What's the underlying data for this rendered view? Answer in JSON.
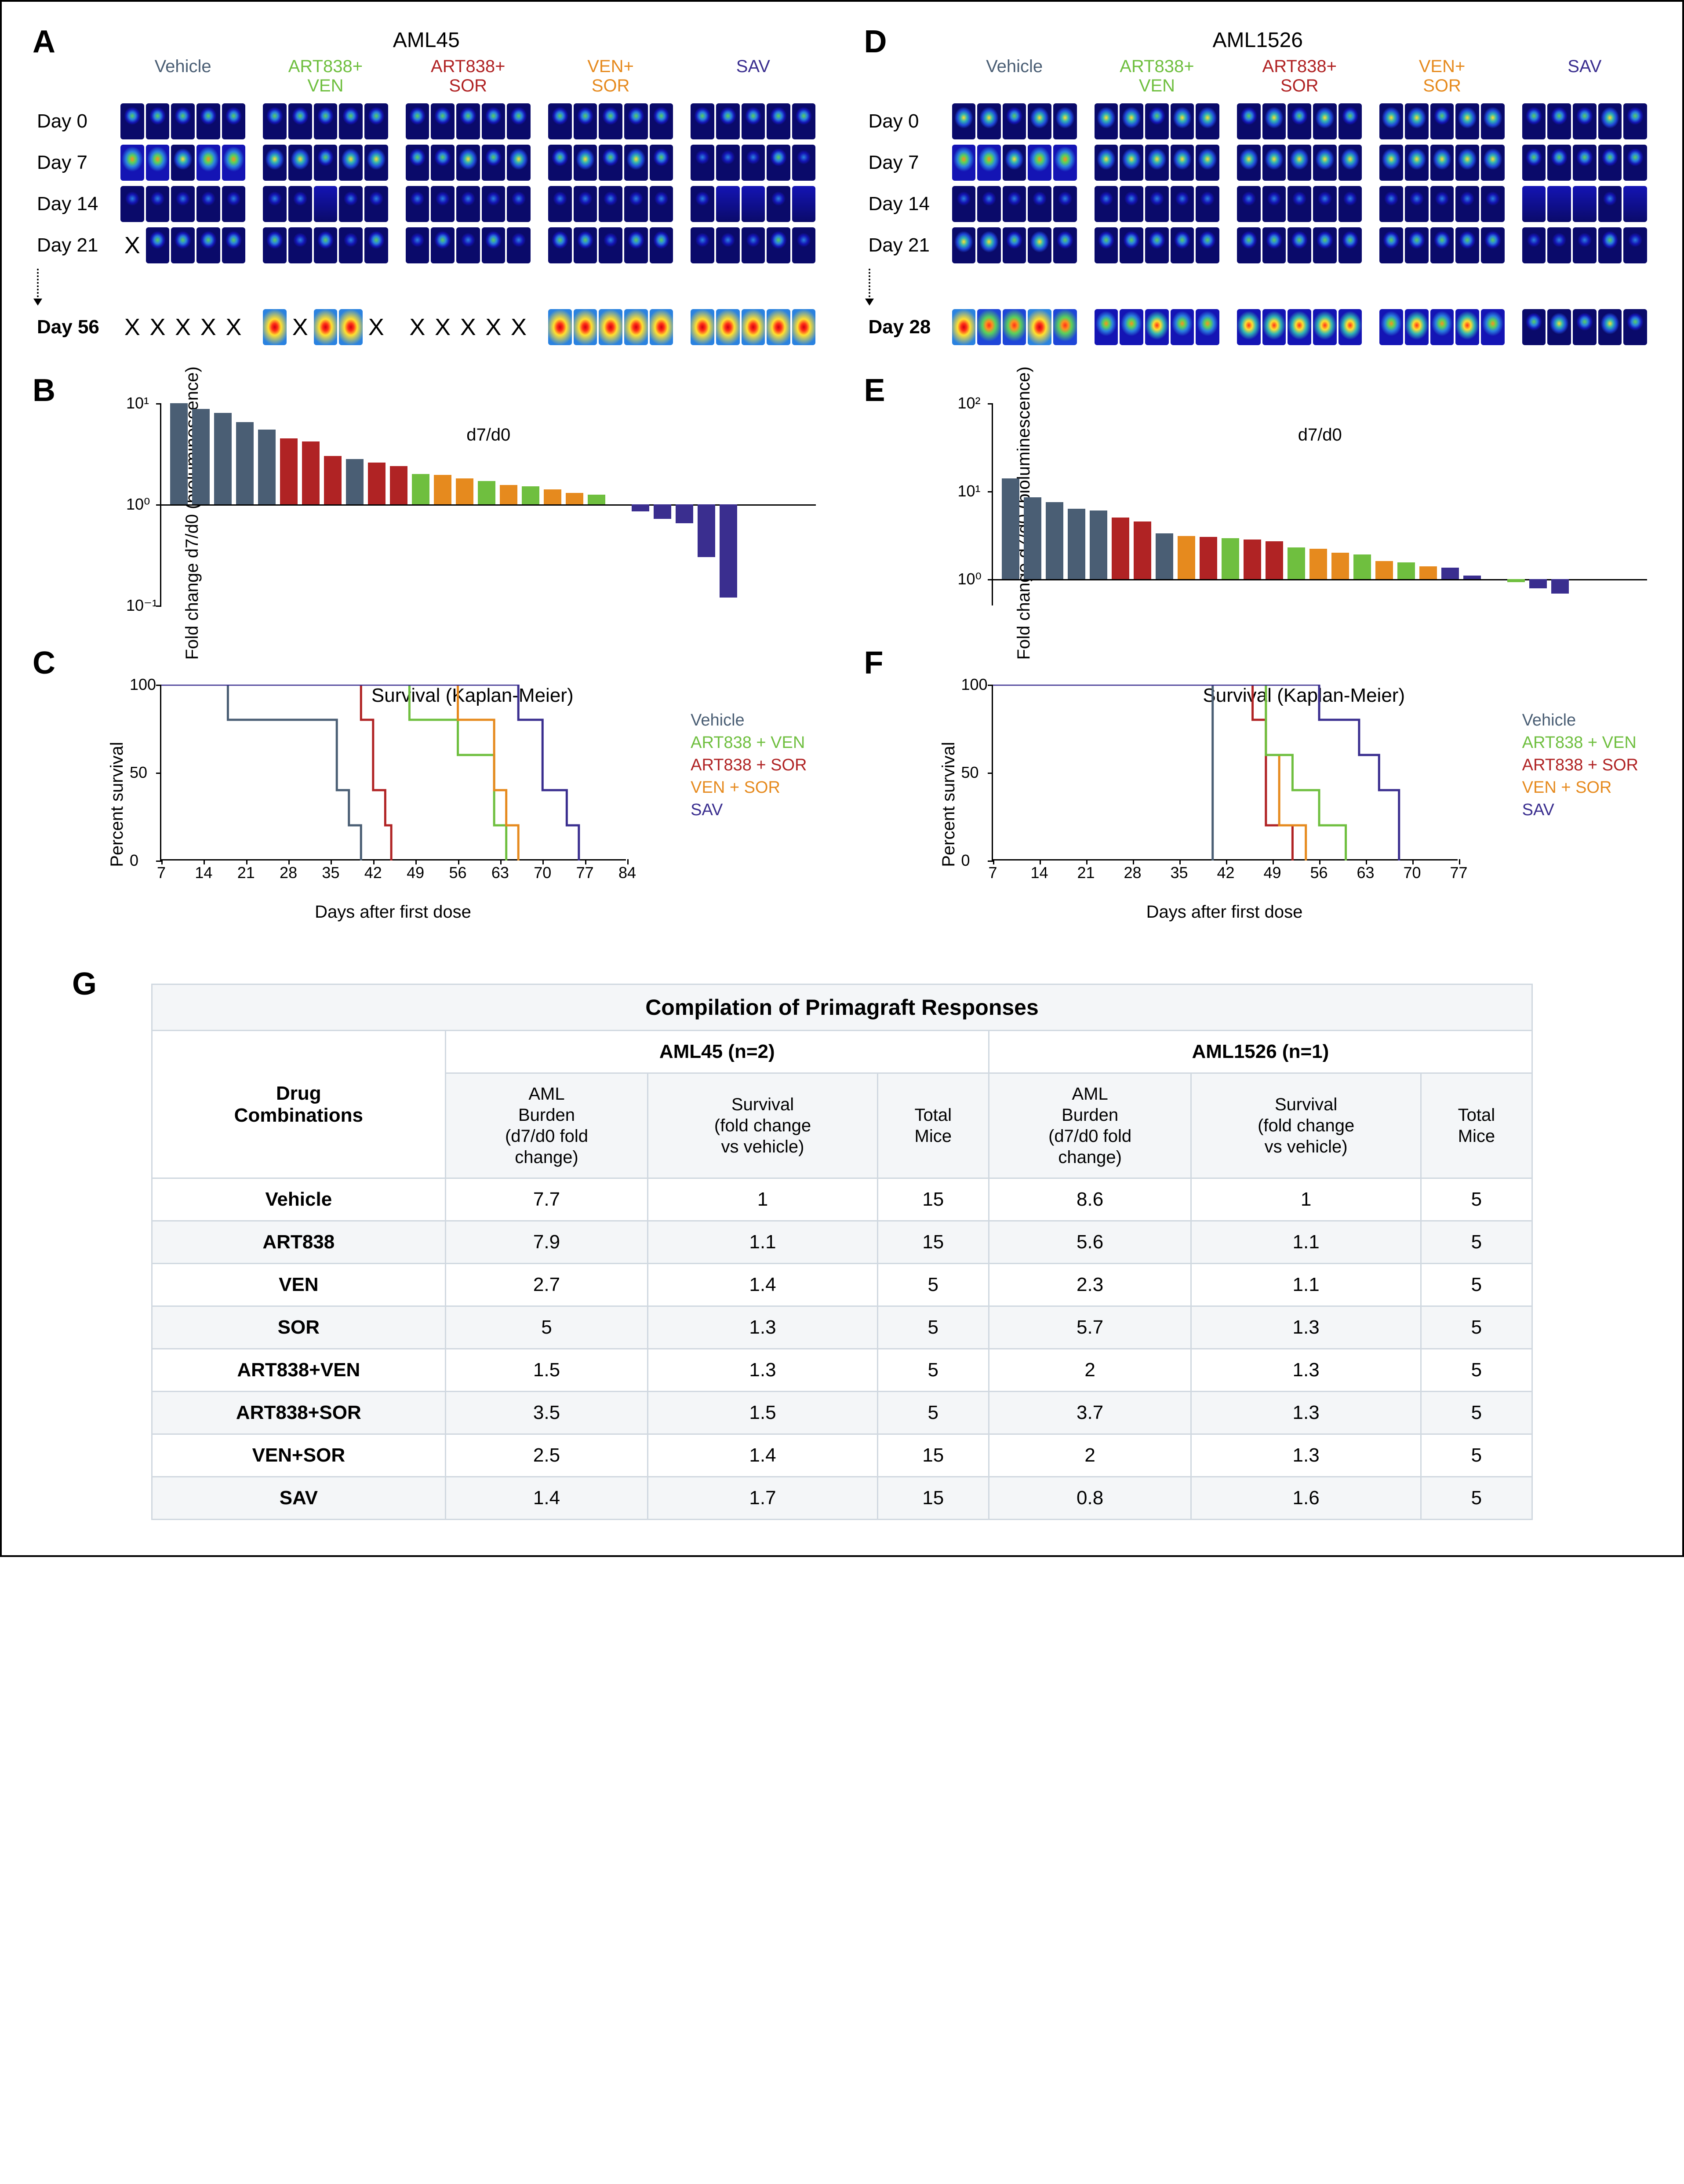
{
  "colors": {
    "vehicle": "#4a5e74",
    "art_ven": "#6fbf3f",
    "art_sor": "#b02324",
    "ven_sor": "#e68a1e",
    "sav": "#3a2e8f",
    "mouse_bg_colors": [
      "#0a0a6a",
      "#1414b4",
      "#1e46d8",
      "#2a82e0",
      "#30b4b4",
      "#5ad25a",
      "#ffe030",
      "#ff9020",
      "#ff3018",
      "#d00010"
    ]
  },
  "panelA": {
    "letter": "A",
    "model_title": "AML45",
    "groups": [
      {
        "label": "Vehicle",
        "color": "#4a5e74"
      },
      {
        "label": "ART838+\nVEN",
        "color": "#6fbf3f"
      },
      {
        "label": "ART838+\nSOR",
        "color": "#b02324"
      },
      {
        "label": "VEN+\nSOR",
        "color": "#e68a1e"
      },
      {
        "label": "SAV",
        "color": "#3a2e8f"
      }
    ],
    "day_labels": [
      "Day 0",
      "Day 7",
      "Day 14",
      "Day 21"
    ],
    "final_day_label": "Day 56",
    "n_per_group": 5,
    "rows_intensity": [
      [
        3,
        3,
        3,
        3,
        3,
        3,
        3,
        3,
        3,
        3,
        3,
        3,
        3,
        3,
        3,
        3,
        3,
        3,
        3,
        3,
        3,
        3,
        3,
        3,
        3
      ],
      [
        5,
        5,
        4,
        5,
        5,
        4,
        4,
        3,
        4,
        4,
        3,
        3,
        4,
        3,
        4,
        3,
        4,
        3,
        4,
        3,
        2,
        2,
        2,
        3,
        2
      ],
      [
        2,
        2,
        2,
        2,
        2,
        2,
        2,
        1,
        2,
        2,
        2,
        2,
        2,
        2,
        2,
        2,
        2,
        2,
        2,
        2,
        2,
        1,
        1,
        2,
        1
      ],
      [
        -1,
        3,
        3,
        3,
        3,
        3,
        2,
        3,
        2,
        3,
        2,
        3,
        2,
        3,
        2,
        3,
        3,
        2,
        3,
        3,
        2,
        2,
        2,
        3,
        2
      ]
    ],
    "final_row": [
      -1,
      -1,
      -1,
      -1,
      -1,
      8,
      -1,
      8,
      8,
      -1,
      -1,
      -1,
      -1,
      -1,
      -1,
      8,
      8,
      8,
      8,
      8,
      8,
      8,
      8,
      8,
      8
    ]
  },
  "panelD": {
    "letter": "D",
    "model_title": "AML1526",
    "groups": [
      {
        "label": "Vehicle",
        "color": "#4a5e74"
      },
      {
        "label": "ART838+\nVEN",
        "color": "#6fbf3f"
      },
      {
        "label": "ART838+\nSOR",
        "color": "#b02324"
      },
      {
        "label": "VEN+\nSOR",
        "color": "#e68a1e"
      },
      {
        "label": "SAV",
        "color": "#3a2e8f"
      }
    ],
    "day_labels": [
      "Day 0",
      "Day 7",
      "Day 14",
      "Day 21"
    ],
    "final_day_label": "Day 28",
    "n_per_group": 5,
    "rows_intensity": [
      [
        4,
        4,
        3,
        4,
        4,
        4,
        4,
        3,
        4,
        4,
        3,
        4,
        3,
        4,
        3,
        4,
        4,
        3,
        4,
        4,
        3,
        3,
        3,
        4,
        3
      ],
      [
        5,
        5,
        4,
        5,
        5,
        4,
        4,
        4,
        4,
        4,
        4,
        4,
        4,
        4,
        4,
        4,
        4,
        4,
        4,
        4,
        3,
        3,
        3,
        3,
        3
      ],
      [
        2,
        2,
        2,
        2,
        2,
        2,
        2,
        2,
        2,
        2,
        2,
        2,
        2,
        2,
        2,
        2,
        2,
        2,
        2,
        2,
        1,
        1,
        1,
        2,
        1
      ],
      [
        4,
        4,
        3,
        4,
        3,
        3,
        3,
        3,
        3,
        3,
        3,
        3,
        3,
        3,
        3,
        3,
        3,
        3,
        3,
        3,
        2,
        2,
        2,
        3,
        2
      ]
    ],
    "final_row": [
      8,
      7,
      7,
      8,
      7,
      5,
      5,
      6,
      5,
      5,
      6,
      6,
      6,
      6,
      6,
      5,
      6,
      5,
      6,
      5,
      3,
      4,
      3,
      4,
      3
    ]
  },
  "panelB": {
    "letter": "B",
    "ylabel": "Fold change d7/d0\n(bioluminescence)",
    "inset": "d7/d0",
    "ylim": [
      0.1,
      10
    ],
    "yticks": [
      0.1,
      1,
      10
    ],
    "ytick_labels": [
      "10⁻¹",
      "10⁰",
      "10¹"
    ],
    "bars": [
      {
        "v": 10.0,
        "c": "#4a5e74"
      },
      {
        "v": 8.8,
        "c": "#4a5e74"
      },
      {
        "v": 8.0,
        "c": "#4a5e74"
      },
      {
        "v": 6.5,
        "c": "#4a5e74"
      },
      {
        "v": 5.5,
        "c": "#4a5e74"
      },
      {
        "v": 4.5,
        "c": "#b02324"
      },
      {
        "v": 4.2,
        "c": "#b02324"
      },
      {
        "v": 3.0,
        "c": "#b02324"
      },
      {
        "v": 2.8,
        "c": "#4a5e74"
      },
      {
        "v": 2.6,
        "c": "#b02324"
      },
      {
        "v": 2.4,
        "c": "#b02324"
      },
      {
        "v": 2.0,
        "c": "#6fbf3f"
      },
      {
        "v": 1.95,
        "c": "#e68a1e"
      },
      {
        "v": 1.8,
        "c": "#e68a1e"
      },
      {
        "v": 1.7,
        "c": "#6fbf3f"
      },
      {
        "v": 1.55,
        "c": "#e68a1e"
      },
      {
        "v": 1.5,
        "c": "#6fbf3f"
      },
      {
        "v": 1.4,
        "c": "#e68a1e"
      },
      {
        "v": 1.3,
        "c": "#e68a1e"
      },
      {
        "v": 1.25,
        "c": "#6fbf3f"
      },
      {
        "v": 1.0,
        "c": "#6fbf3f"
      },
      {
        "v": 0.85,
        "c": "#3a2e8f"
      },
      {
        "v": 0.72,
        "c": "#3a2e8f"
      },
      {
        "v": 0.65,
        "c": "#3a2e8f"
      },
      {
        "v": 0.3,
        "c": "#3a2e8f"
      },
      {
        "v": 0.12,
        "c": "#3a2e8f"
      }
    ]
  },
  "panelE": {
    "letter": "E",
    "ylabel": "Fold change d7/d0\n(bioluminescence)",
    "inset": "d7/d0",
    "ylim": [
      0.5,
      100
    ],
    "yticks": [
      1,
      10,
      100
    ],
    "ytick_labels": [
      "10⁰",
      "10¹",
      "10²"
    ],
    "bars": [
      {
        "v": 14.0,
        "c": "#4a5e74"
      },
      {
        "v": 8.5,
        "c": "#4a5e74"
      },
      {
        "v": 7.5,
        "c": "#4a5e74"
      },
      {
        "v": 6.3,
        "c": "#4a5e74"
      },
      {
        "v": 6.0,
        "c": "#4a5e74"
      },
      {
        "v": 5.0,
        "c": "#b02324"
      },
      {
        "v": 4.5,
        "c": "#b02324"
      },
      {
        "v": 3.3,
        "c": "#4a5e74"
      },
      {
        "v": 3.1,
        "c": "#e68a1e"
      },
      {
        "v": 3.0,
        "c": "#b02324"
      },
      {
        "v": 2.9,
        "c": "#6fbf3f"
      },
      {
        "v": 2.8,
        "c": "#b02324"
      },
      {
        "v": 2.7,
        "c": "#b02324"
      },
      {
        "v": 2.3,
        "c": "#6fbf3f"
      },
      {
        "v": 2.2,
        "c": "#e68a1e"
      },
      {
        "v": 2.0,
        "c": "#e68a1e"
      },
      {
        "v": 1.9,
        "c": "#6fbf3f"
      },
      {
        "v": 1.6,
        "c": "#e68a1e"
      },
      {
        "v": 1.55,
        "c": "#6fbf3f"
      },
      {
        "v": 1.4,
        "c": "#e68a1e"
      },
      {
        "v": 1.35,
        "c": "#3a2e8f"
      },
      {
        "v": 1.1,
        "c": "#3a2e8f"
      },
      {
        "v": 1.0,
        "c": "#3a2e8f"
      },
      {
        "v": 0.92,
        "c": "#6fbf3f"
      },
      {
        "v": 0.78,
        "c": "#3a2e8f"
      },
      {
        "v": 0.68,
        "c": "#3a2e8f"
      }
    ]
  },
  "panelC": {
    "letter": "C",
    "title": "Survival (Kaplan-Meier)",
    "ylabel": "Percent survival",
    "xlabel": "Days after first dose",
    "xlim": [
      7,
      84
    ],
    "xticks": [
      7,
      14,
      21,
      28,
      35,
      42,
      49,
      56,
      63,
      70,
      77,
      84
    ],
    "ylim": [
      0,
      100
    ],
    "yticks": [
      0,
      50,
      100
    ],
    "legend": [
      {
        "label": "Vehicle",
        "c": "#4a5e74"
      },
      {
        "label": "ART838 + VEN",
        "c": "#6fbf3f"
      },
      {
        "label": "ART838 + SOR",
        "c": "#b02324"
      },
      {
        "label": "VEN + SOR",
        "c": "#e68a1e"
      },
      {
        "label": "SAV",
        "c": "#3a2e8f"
      }
    ],
    "curves": [
      {
        "c": "#4a5e74",
        "steps": [
          [
            7,
            100
          ],
          [
            18,
            100
          ],
          [
            18,
            80
          ],
          [
            36,
            80
          ],
          [
            36,
            40
          ],
          [
            38,
            40
          ],
          [
            38,
            20
          ],
          [
            40,
            20
          ],
          [
            40,
            0
          ]
        ]
      },
      {
        "c": "#b02324",
        "steps": [
          [
            7,
            100
          ],
          [
            40,
            100
          ],
          [
            40,
            80
          ],
          [
            42,
            80
          ],
          [
            42,
            40
          ],
          [
            44,
            40
          ],
          [
            44,
            20
          ],
          [
            45,
            20
          ],
          [
            45,
            0
          ]
        ]
      },
      {
        "c": "#6fbf3f",
        "steps": [
          [
            7,
            100
          ],
          [
            48,
            100
          ],
          [
            48,
            80
          ],
          [
            56,
            80
          ],
          [
            56,
            60
          ],
          [
            62,
            60
          ],
          [
            62,
            20
          ],
          [
            64,
            20
          ],
          [
            64,
            0
          ]
        ]
      },
      {
        "c": "#e68a1e",
        "steps": [
          [
            7,
            100
          ],
          [
            56,
            100
          ],
          [
            56,
            80
          ],
          [
            62,
            80
          ],
          [
            62,
            40
          ],
          [
            64,
            40
          ],
          [
            64,
            20
          ],
          [
            66,
            20
          ],
          [
            66,
            0
          ]
        ]
      },
      {
        "c": "#3a2e8f",
        "steps": [
          [
            7,
            100
          ],
          [
            66,
            100
          ],
          [
            66,
            80
          ],
          [
            70,
            80
          ],
          [
            70,
            40
          ],
          [
            74,
            40
          ],
          [
            74,
            20
          ],
          [
            76,
            20
          ],
          [
            76,
            0
          ]
        ]
      }
    ]
  },
  "panelF": {
    "letter": "F",
    "title": "Survival (Kaplan-Meier)",
    "ylabel": "Percent survival",
    "xlabel": "Days after first dose",
    "xlim": [
      7,
      77
    ],
    "xticks": [
      7,
      14,
      21,
      28,
      35,
      42,
      49,
      56,
      63,
      70,
      77
    ],
    "ylim": [
      0,
      100
    ],
    "yticks": [
      0,
      50,
      100
    ],
    "legend": [
      {
        "label": "Vehicle",
        "c": "#4a5e74"
      },
      {
        "label": "ART838 + VEN",
        "c": "#6fbf3f"
      },
      {
        "label": "ART838 + SOR",
        "c": "#b02324"
      },
      {
        "label": "VEN + SOR",
        "c": "#e68a1e"
      },
      {
        "label": "SAV",
        "c": "#3a2e8f"
      }
    ],
    "curves": [
      {
        "c": "#4a5e74",
        "steps": [
          [
            7,
            100
          ],
          [
            40,
            100
          ],
          [
            40,
            0
          ]
        ]
      },
      {
        "c": "#b02324",
        "steps": [
          [
            7,
            100
          ],
          [
            46,
            100
          ],
          [
            46,
            80
          ],
          [
            48,
            80
          ],
          [
            48,
            20
          ],
          [
            52,
            20
          ],
          [
            52,
            0
          ]
        ]
      },
      {
        "c": "#e68a1e",
        "steps": [
          [
            7,
            100
          ],
          [
            48,
            100
          ],
          [
            48,
            60
          ],
          [
            50,
            60
          ],
          [
            50,
            20
          ],
          [
            54,
            20
          ],
          [
            54,
            0
          ]
        ]
      },
      {
        "c": "#6fbf3f",
        "steps": [
          [
            7,
            100
          ],
          [
            48,
            100
          ],
          [
            48,
            60
          ],
          [
            52,
            60
          ],
          [
            52,
            40
          ],
          [
            56,
            40
          ],
          [
            56,
            20
          ],
          [
            60,
            20
          ],
          [
            60,
            0
          ]
        ]
      },
      {
        "c": "#3a2e8f",
        "steps": [
          [
            7,
            100
          ],
          [
            56,
            100
          ],
          [
            56,
            80
          ],
          [
            62,
            80
          ],
          [
            62,
            60
          ],
          [
            65,
            60
          ],
          [
            65,
            40
          ],
          [
            68,
            40
          ],
          [
            68,
            0
          ]
        ]
      }
    ]
  },
  "panelG": {
    "letter": "G",
    "title": "Compilation of Primagraft Responses",
    "models": [
      {
        "name": "AML45 (n=2)"
      },
      {
        "name": "AML1526 (n=1)"
      }
    ],
    "col_left": "Drug\nCombinations",
    "sub_headers": [
      "AML\nBurden\n(d7/d0 fold\nchange)",
      "Survival\n(fold change\nvs vehicle)",
      "Total\nMice"
    ],
    "rows": [
      {
        "drug": "Vehicle",
        "a": [
          7.7,
          1,
          15
        ],
        "b": [
          8.6,
          1,
          5
        ]
      },
      {
        "drug": "ART838",
        "a": [
          7.9,
          1.1,
          15
        ],
        "b": [
          5.6,
          1.1,
          5
        ]
      },
      {
        "drug": "VEN",
        "a": [
          2.7,
          1.4,
          5
        ],
        "b": [
          2.3,
          1.1,
          5
        ]
      },
      {
        "drug": "SOR",
        "a": [
          5.0,
          1.3,
          5
        ],
        "b": [
          5.7,
          1.3,
          5
        ]
      },
      {
        "drug": "ART838+VEN",
        "a": [
          1.5,
          1.3,
          5
        ],
        "b": [
          2.0,
          1.3,
          5
        ]
      },
      {
        "drug": "ART838+SOR",
        "a": [
          3.5,
          1.5,
          5
        ],
        "b": [
          3.7,
          1.3,
          5
        ]
      },
      {
        "drug": "VEN+SOR",
        "a": [
          2.5,
          1.4,
          15
        ],
        "b": [
          2.0,
          1.3,
          5
        ]
      },
      {
        "drug": "SAV",
        "a": [
          1.4,
          1.7,
          15
        ],
        "b": [
          0.8,
          1.6,
          5
        ]
      }
    ]
  }
}
